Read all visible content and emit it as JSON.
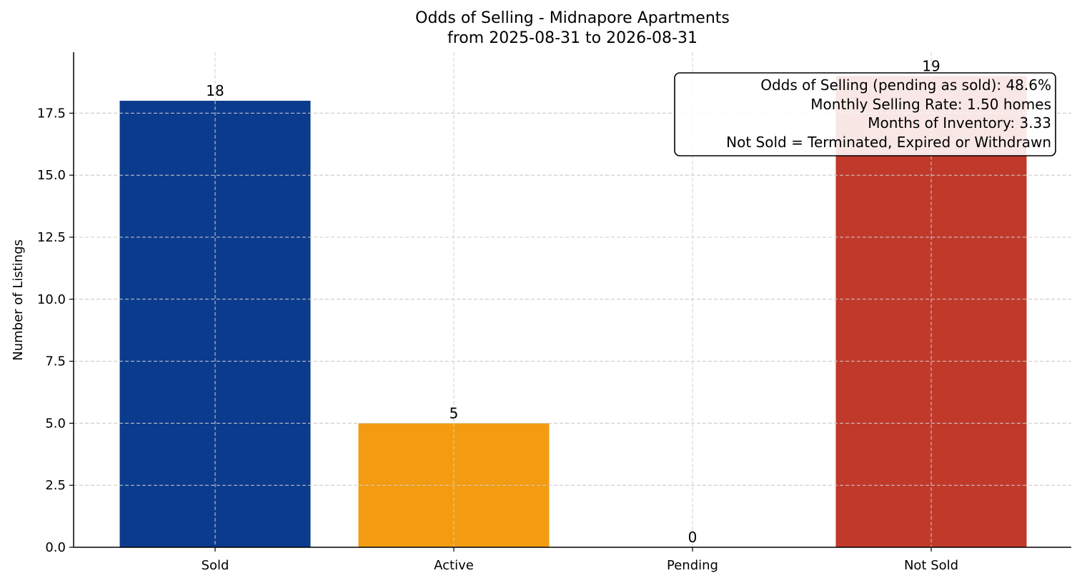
{
  "chart_data": {
    "type": "bar",
    "title": "Odds of Selling - Midnapore Apartments",
    "subtitle": "from 2025-08-31 to 2026-08-31",
    "xlabel": "",
    "ylabel": "Number of Listings",
    "categories": [
      "Sold",
      "Active",
      "Pending",
      "Not Sold"
    ],
    "values": [
      18,
      5,
      0,
      19
    ],
    "colors": [
      "#0b3b8c",
      "#f39c12",
      "#1f77b4",
      "#c0392b"
    ],
    "ylim": [
      0,
      20
    ],
    "yticks": [
      "0.0",
      "2.5",
      "5.0",
      "7.5",
      "10.0",
      "12.5",
      "15.0",
      "17.5"
    ],
    "grid": true,
    "annotation": {
      "lines": [
        "Odds of Selling (pending as sold): 48.6%",
        "Monthly Selling Rate: 1.50 homes",
        "Months of Inventory: 3.33",
        "Not Sold = Terminated, Expired or Withdrawn"
      ],
      "placement": "top-right"
    }
  }
}
